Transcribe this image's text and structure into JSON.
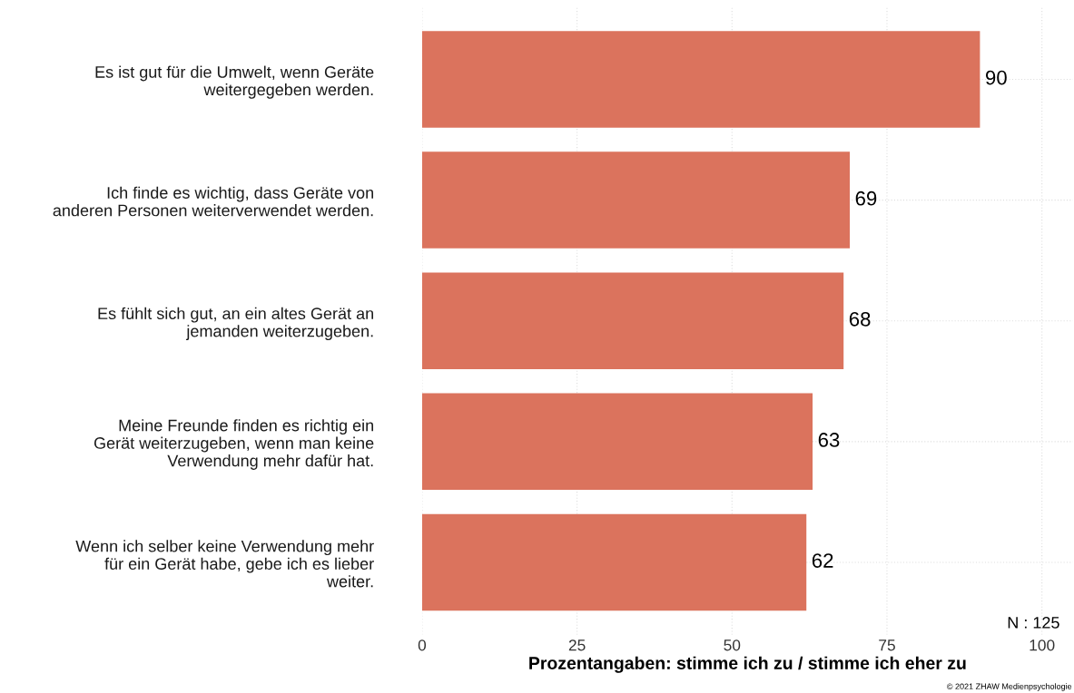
{
  "chart_data": {
    "type": "bar",
    "orientation": "horizontal",
    "xlabel": "Prozentangaben: stimme ich zu / stimme ich eher zu",
    "categories": [
      "Es ist gut für die Umwelt, wenn Geräte\nweitergegeben werden.",
      "Ich finde es wichtig, dass Geräte von\nanderen Personen weiterverwendet werden.",
      "Es fühlt sich gut, an ein altes Gerät an\njemanden weiterzugeben.",
      "Meine Freunde finden es richtig ein\nGerät weiterzugeben, wenn man keine\nVerwendung mehr dafür hat.",
      "Wenn ich selber keine Verwendung mehr\nfür ein Gerät habe, gebe ich es lieber\nweiter."
    ],
    "values": [
      90,
      69,
      68,
      63,
      62
    ],
    "color": "#db735d",
    "data_labels": true,
    "xlim": [
      0,
      105
    ],
    "xticks": [
      0,
      25,
      50,
      75,
      100
    ],
    "grid": true,
    "annotations": [
      {
        "text": "N : 125"
      },
      {
        "text": "© 2021 ZHAW Medienpsychologie"
      }
    ]
  }
}
